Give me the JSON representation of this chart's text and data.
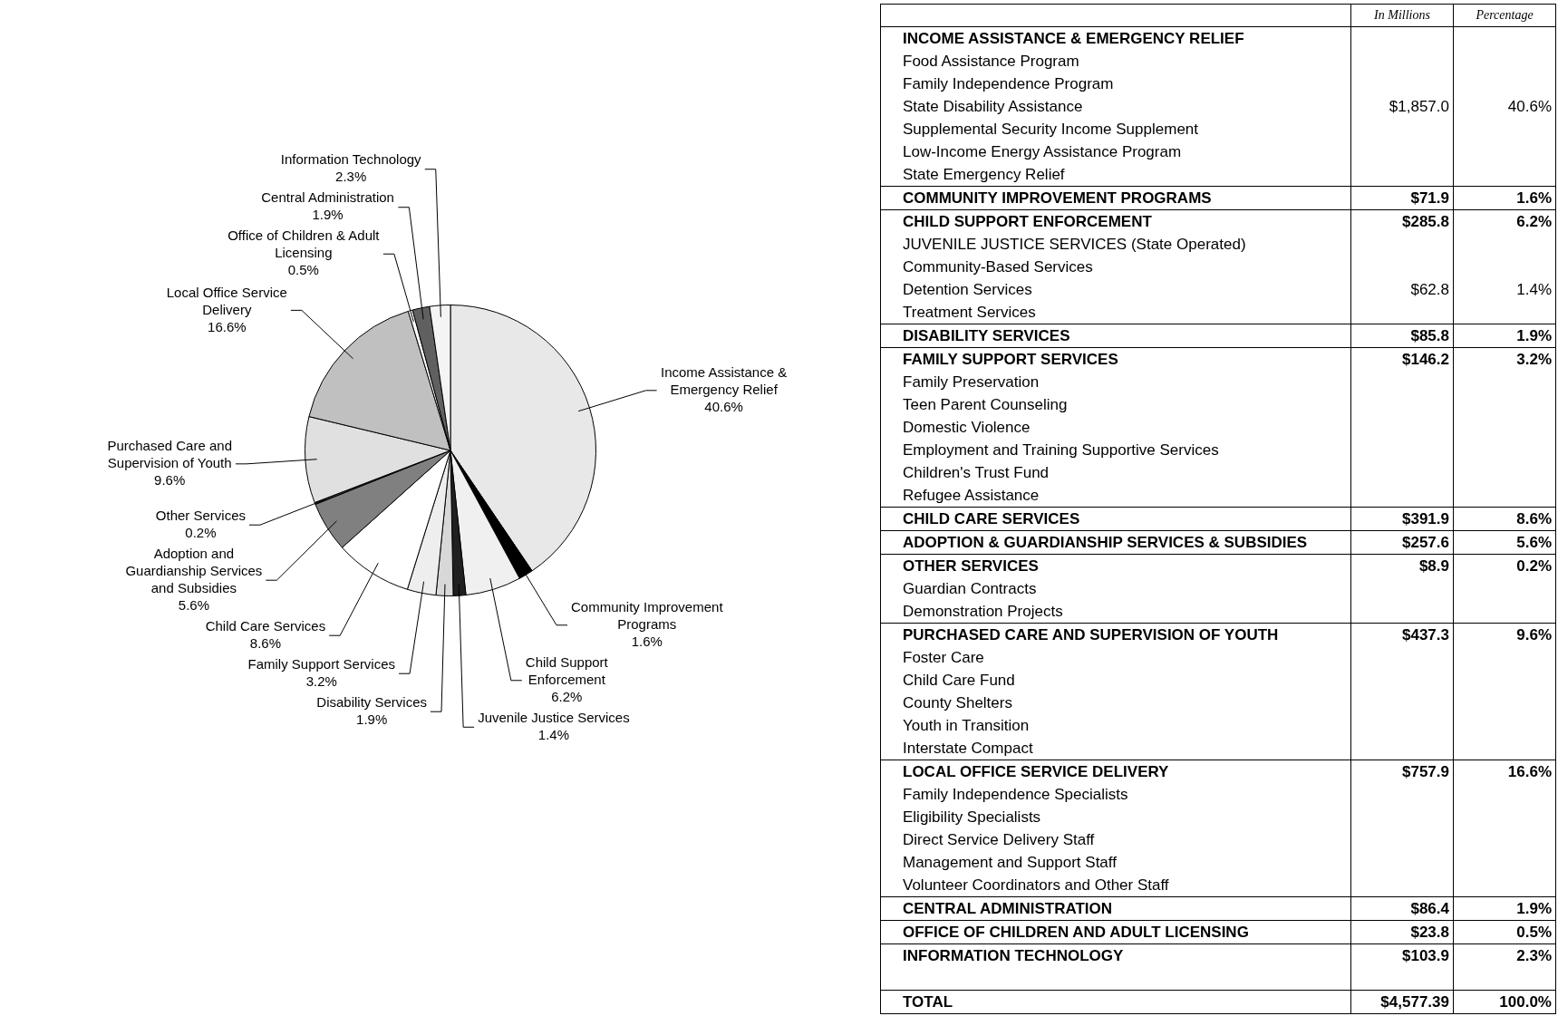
{
  "chart_data": [
    {
      "type": "pie",
      "categories": [
        "Income Assistance & Emergency Relief",
        "Community Improvement Programs",
        "Child Support Enforcement",
        "Juvenile Justice Services",
        "Disability Services",
        "Family Support Services",
        "Child Care Services",
        "Adoption and Guardianship Services and Subsidies",
        "Other Services",
        "Purchased Care and Supervision of Youth",
        "Local Office Service Delivery",
        "Office of Children & Adult Licensing",
        "Central Administration",
        "Information Technology"
      ],
      "values": [
        40.6,
        1.6,
        6.2,
        1.4,
        1.9,
        3.2,
        8.6,
        5.6,
        0.2,
        9.6,
        16.6,
        0.5,
        1.9,
        2.3
      ],
      "value_labels": [
        "40.6%",
        "1.6%",
        "6.2%",
        "1.4%",
        "1.9%",
        "3.2%",
        "8.6%",
        "5.6%",
        "0.2%",
        "9.6%",
        "16.6%",
        "0.5%",
        "1.9%",
        "2.3%"
      ],
      "colors": [
        "#e8e8e8",
        "#000000",
        "#f0f0f0",
        "#202020",
        "#d8d8d8",
        "#eeeeee",
        "#ffffff",
        "#808080",
        "#404040",
        "#e0e0e0",
        "#c0c0c0",
        "#ffffff",
        "#606060",
        "#f4f4f4"
      ],
      "legend": false
    },
    {
      "type": "other",
      "categories": [
        "INCOME ASSISTANCE & EMERGENCY RELIEF",
        "Food Assistance Program",
        "Family Independence Program",
        "State Disability Assistance",
        "Supplemental Security Income Supplement",
        "Low-Income Energy Assistance Program",
        "State Emergency Relief",
        "COMMUNITY IMPROVEMENT PROGRAMS",
        "CHILD SUPPORT ENFORCEMENT",
        "JUVENILE JUSTICE SERVICES (State Operated)",
        "Community-Based Services",
        "Detention Services",
        "Treatment Services",
        "DISABILITY SERVICES",
        "FAMILY SUPPORT SERVICES",
        "Family Preservation",
        "Teen Parent Counseling",
        "Domestic Violence",
        "Employment and Training Supportive Services",
        "Children's Trust Fund",
        "Refugee Assistance",
        "CHILD CARE SERVICES",
        "ADOPTION & GUARDIANSHIP SERVICES & SUBSIDIES",
        "OTHER SERVICES",
        "Guardian Contracts",
        "Demonstration Projects",
        "PURCHASED CARE AND SUPERVISION OF YOUTH",
        "Foster Care",
        "Child Care Fund",
        "County Shelters",
        "Youth in Transition",
        "Interstate Compact",
        "LOCAL OFFICE SERVICE DELIVERY",
        "Family Independence Specialists",
        "Eligibility Specialists",
        "Direct Service Delivery Staff",
        "Management and Support Staff",
        "Volunteer Coordinators and Other Staff",
        "CENTRAL ADMINISTRATION",
        "OFFICE OF CHILDREN AND ADULT LICENSING",
        "INFORMATION TECHNOLOGY",
        null,
        "TOTAL"
      ],
      "series": [
        {
          "name": "In Millions",
          "values": [
            null,
            null,
            null,
            1857.0,
            null,
            null,
            null,
            71.9,
            285.8,
            null,
            null,
            62.8,
            null,
            85.8,
            146.2,
            null,
            null,
            null,
            null,
            null,
            null,
            391.9,
            257.6,
            8.9,
            null,
            null,
            437.3,
            null,
            null,
            null,
            null,
            null,
            757.9,
            null,
            null,
            null,
            null,
            null,
            86.4,
            23.8,
            103.9,
            null,
            4577.39
          ],
          "value_labels": [
            null,
            null,
            null,
            "$1,857.0",
            null,
            null,
            null,
            "$71.9",
            "$285.8",
            null,
            null,
            "$62.8",
            null,
            "$85.8",
            "$146.2",
            null,
            null,
            null,
            null,
            null,
            null,
            "$391.9",
            "$257.6",
            "$8.9",
            null,
            null,
            "$437.3",
            null,
            null,
            null,
            null,
            null,
            "$757.9",
            null,
            null,
            null,
            null,
            null,
            "$86.4",
            "$23.8",
            "$103.9",
            null,
            "$4,577.39"
          ]
        },
        {
          "name": "Percentage",
          "values": [
            null,
            null,
            null,
            40.6,
            null,
            null,
            null,
            1.6,
            6.2,
            null,
            null,
            1.4,
            null,
            1.9,
            3.2,
            null,
            null,
            null,
            null,
            null,
            null,
            8.6,
            5.6,
            0.2,
            null,
            null,
            9.6,
            null,
            null,
            null,
            null,
            null,
            16.6,
            null,
            null,
            null,
            null,
            null,
            1.9,
            0.5,
            2.3,
            null,
            100.0
          ],
          "value_labels": [
            null,
            null,
            null,
            "40.6%",
            null,
            null,
            null,
            "1.6%",
            "6.2%",
            null,
            null,
            "1.4%",
            null,
            "1.9%",
            "3.2%",
            null,
            null,
            null,
            null,
            null,
            null,
            "8.6%",
            "5.6%",
            "0.2%",
            null,
            null,
            "9.6%",
            null,
            null,
            null,
            null,
            null,
            "16.6%",
            null,
            null,
            null,
            null,
            null,
            "1.9%",
            "0.5%",
            "2.3%",
            null,
            "100.0%"
          ]
        }
      ]
    }
  ]
}
